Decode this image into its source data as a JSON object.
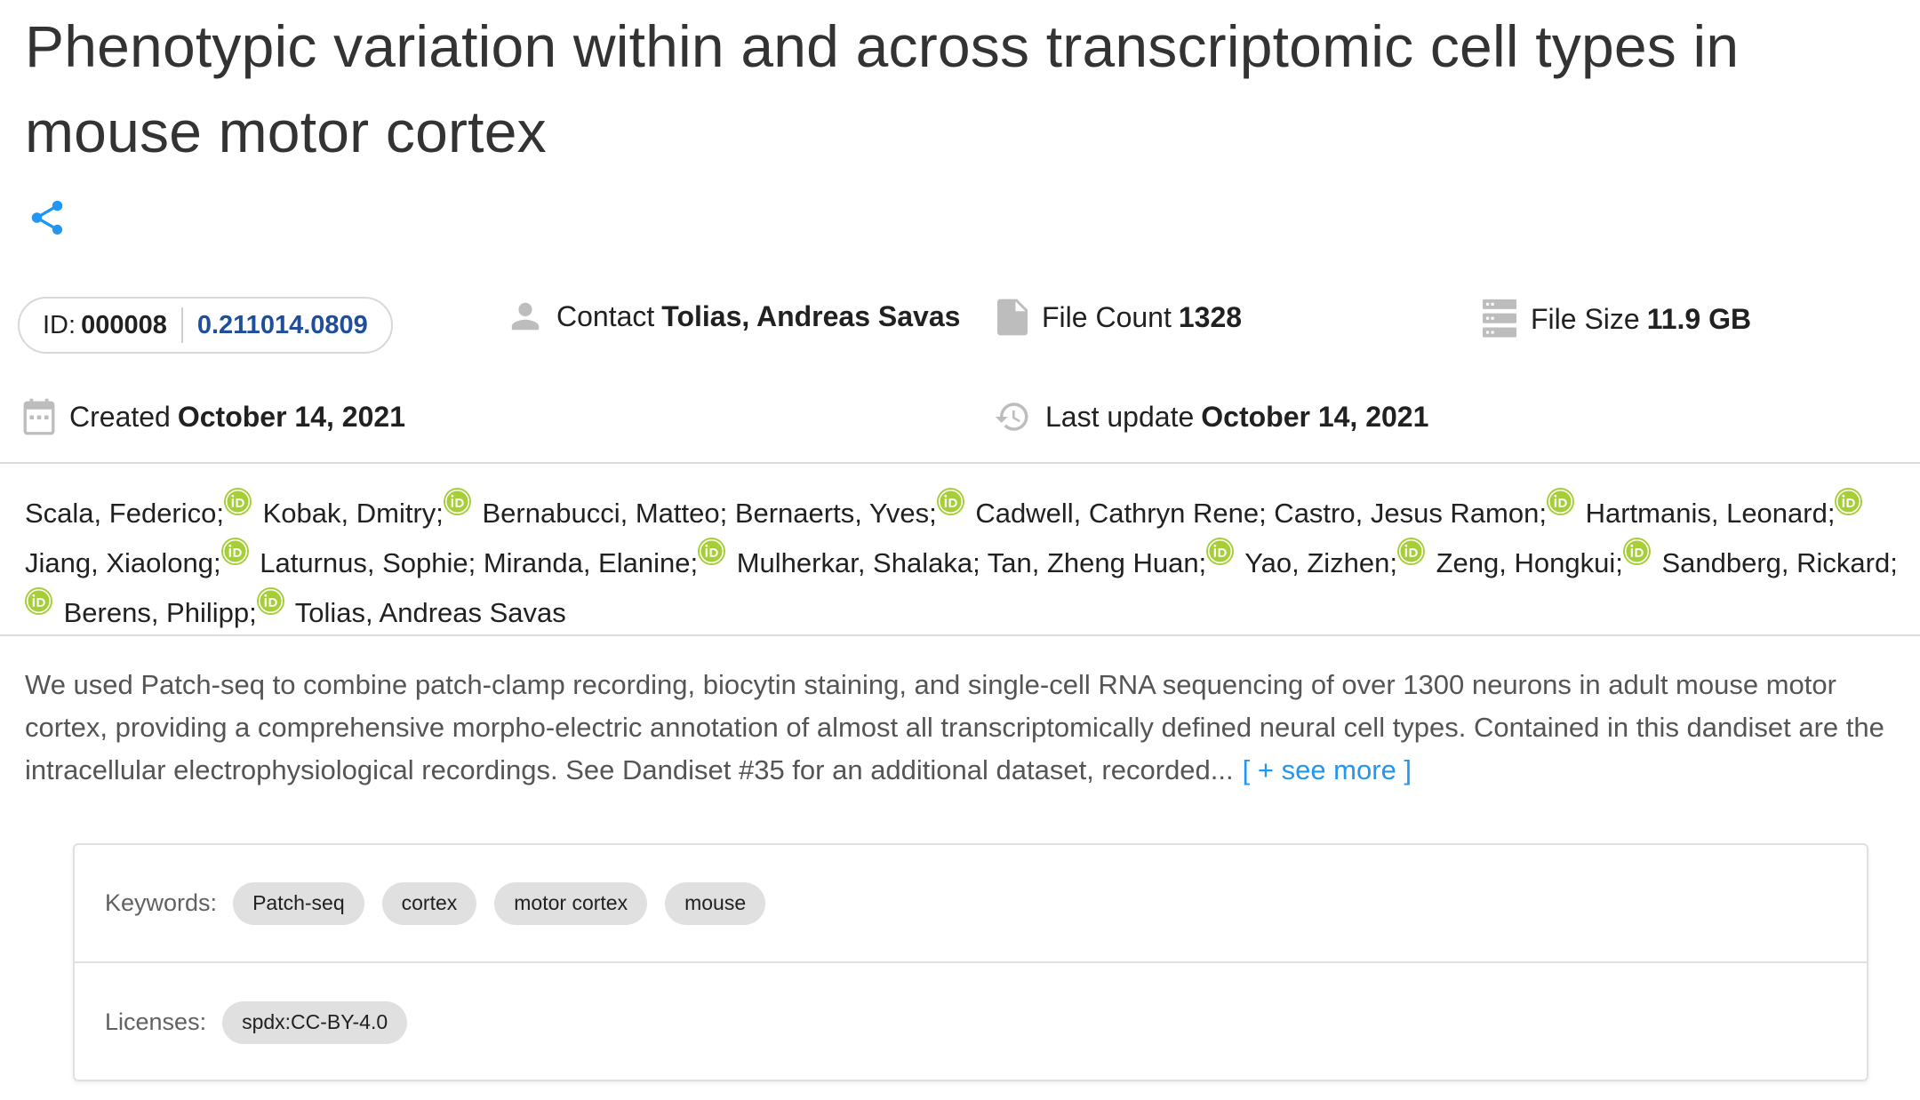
{
  "title": "Phenotypic variation within and across transcriptomic cell types in mouse motor cortex",
  "id_label": "ID:",
  "id_value": "000008",
  "version": "0.211014.0809",
  "contact": {
    "label": "Contact",
    "value": "Tolias, Andreas Savas"
  },
  "file_count": {
    "label": "File Count",
    "value": "1328"
  },
  "file_size": {
    "label": "File Size",
    "value": "11.9 GB"
  },
  "created": {
    "label": "Created",
    "value": "October 14, 2021"
  },
  "last_update": {
    "label": "Last update",
    "value": "October 14, 2021"
  },
  "authors": [
    {
      "name": "Scala, Federico;",
      "orcid": true
    },
    {
      "name": " Kobak, Dmitry;",
      "orcid": true
    },
    {
      "name": " Bernabucci, Matteo; Bernaerts, Yves;",
      "orcid": true
    },
    {
      "name": " Cadwell, Cathryn Rene; Castro, Jesus Ramon;",
      "orcid": true
    },
    {
      "name": " Hartmanis, Leonard;",
      "orcid": true
    },
    {
      "name": " Jiang, Xiaolong;",
      "orcid": true
    },
    {
      "name": " Laturnus, Sophie; Miranda, Elanine;",
      "orcid": true
    },
    {
      "name": " Mulherkar, Shalaka; Tan, Zheng Huan;",
      "orcid": true
    },
    {
      "name": " Yao, Zizhen;",
      "orcid": true
    },
    {
      "name": " Zeng, Hongkui;",
      "orcid": true
    },
    {
      "name": " Sandberg, Rickard;",
      "orcid": true
    },
    {
      "name": " Berens, Philipp;",
      "orcid": true
    },
    {
      "name": " Tolias, Andreas Savas",
      "orcid": false
    }
  ],
  "description": "We used Patch-seq to combine patch-clamp recording, biocytin staining, and single-cell RNA sequencing of over 1300 neurons in adult mouse motor cortex, providing a comprehensive morpho-electric annotation of almost all transcriptomically defined neural cell types. Contained in this dandiset are the intracellular electrophysiological recordings. See Dandiset #35 for an additional dataset, recorded...",
  "see_more": "[ + see more ]",
  "keywords_label": "Keywords:",
  "keywords": [
    "Patch-seq",
    "cortex",
    "motor cortex",
    "mouse"
  ],
  "licenses_label": "Licenses:",
  "licenses": [
    "spdx:CC-BY-4.0"
  ],
  "colors": {
    "accent": "#2196f3",
    "version_link": "#1f4f9c",
    "orcid": "#a6ce39",
    "icon_gray": "#bdbdbd"
  }
}
